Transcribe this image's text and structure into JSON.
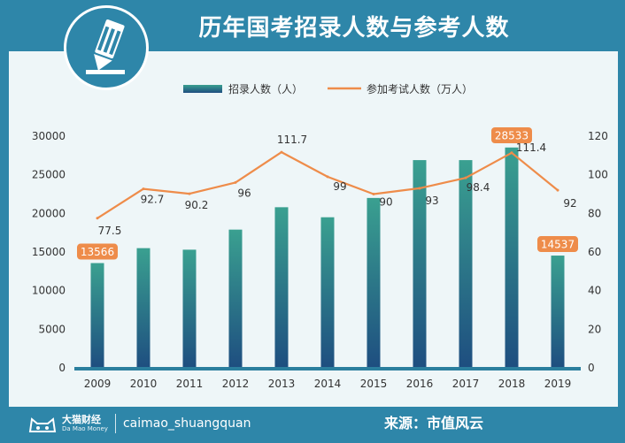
{
  "title": "历年国考招录人数与参考人数",
  "footer": {
    "brand_name": "大猫财经",
    "brand_sub": "Da Mao Money",
    "handle": "caimao_shuangquan",
    "source": "来源：市值风云"
  },
  "chart_data": {
    "type": "bar+line",
    "title": "历年国考招录人数与参考人数",
    "categories": [
      "2009",
      "2010",
      "2011",
      "2012",
      "2013",
      "2014",
      "2015",
      "2016",
      "2017",
      "2018",
      "2019"
    ],
    "series": [
      {
        "name": "招录人数（人）",
        "type": "bar",
        "axis": "left",
        "values": [
          13566,
          15500,
          15300,
          17900,
          20800,
          19500,
          22000,
          26900,
          26900,
          28533,
          14537
        ],
        "labeled": {
          "0": "13566",
          "9": "28533",
          "10": "14537"
        },
        "color_top": "#3aa090",
        "color_bottom": "#1e4e80"
      },
      {
        "name": "参加考试人数（万人）",
        "type": "line",
        "axis": "right",
        "values": [
          77.5,
          92.7,
          90.2,
          96,
          111.7,
          99,
          90,
          93,
          98.4,
          111.4,
          92
        ],
        "labels": [
          "77.5",
          "92.7",
          "90.2",
          "96",
          "111.7",
          "99",
          "90",
          "93",
          "98.4",
          "111.4",
          "92"
        ],
        "color": "#ee8c4a"
      }
    ],
    "y_left": {
      "min": 0,
      "max": 30000,
      "ticks": [
        "0",
        "5000",
        "10000",
        "15000",
        "20000",
        "25000",
        "30000"
      ]
    },
    "y_right": {
      "min": 0,
      "max": 120,
      "ticks": [
        "0",
        "20",
        "40",
        "60",
        "80",
        "100",
        "120"
      ]
    },
    "legend_position": "top-center",
    "label_badge_color": "#ee8c4a",
    "axis_color": "#2b7f9e"
  }
}
